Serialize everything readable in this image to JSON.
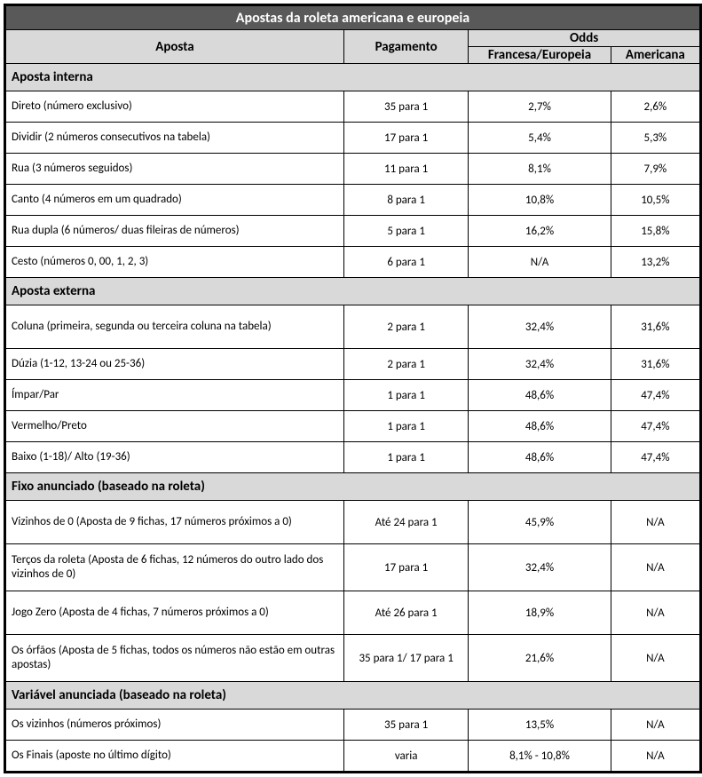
{
  "title": "Apostas da roleta americana e europeia",
  "headers": {
    "aposta": "Aposta",
    "pagamento": "Pagamento",
    "odds": "Odds",
    "europeu": "Francesa/Europeia",
    "americana": "Americana"
  },
  "sections": [
    {
      "name": "Aposta interna",
      "rows": [
        {
          "bet": "Direto (número exclusivo)",
          "pay": "35 para 1",
          "eu": "2,7%",
          "am": "2,6%"
        },
        {
          "bet": "Dividir (2 números consecutivos na tabela)",
          "pay": "17 para 1",
          "eu": "5,4%",
          "am": "5,3%"
        },
        {
          "bet": "Rua (3 números seguidos)",
          "pay": "11 para 1",
          "eu": "8,1%",
          "am": "7,9%"
        },
        {
          "bet": "Canto (4 números em um quadrado)",
          "pay": "8 para 1",
          "eu": "10,8%",
          "am": "10,5%"
        },
        {
          "bet": "Rua dupla (6 números/ duas fileiras de números)",
          "pay": "5 para 1",
          "eu": "16,2%",
          "am": "15,8%"
        },
        {
          "bet": "Cesto (números 0, 00, 1, 2, 3)",
          "pay": "6 para 1",
          "eu": "N/A",
          "am": "13,2%"
        }
      ]
    },
    {
      "name": "Aposta externa",
      "rows": [
        {
          "bet": "Coluna (primeira, segunda ou terceira coluna na tabela)",
          "pay": "2 para 1",
          "eu": "32,4%",
          "am": "31,6%",
          "tall": true
        },
        {
          "bet": "Dúzia (1-12, 13-24 ou 25-36)",
          "pay": "2 para 1",
          "eu": "32,4%",
          "am": "31,6%"
        },
        {
          "bet": "Ímpar/Par",
          "pay": "1 para 1",
          "eu": "48,6%",
          "am": "47,4%"
        },
        {
          "bet": "Vermelho/Preto",
          "pay": "1 para 1",
          "eu": "48,6%",
          "am": "47,4%"
        },
        {
          "bet": "Baixo (1-18)/ Alto (19-36)",
          "pay": "1 para 1",
          "eu": "48,6%",
          "am": "47,4%"
        }
      ]
    },
    {
      "name": "Fixo anunciado (baseado na roleta)",
      "rows": [
        {
          "bet": "Vizinhos de 0 (Aposta de 9 fichas, 17 números próximos a 0)",
          "pay": "Até 24 para 1",
          "eu": "45,9%",
          "am": "N/A",
          "tall": true
        },
        {
          "bet": "Terços da roleta (Aposta de 6 fichas, 12 números do outro lado dos vizinhos de 0)",
          "pay": "17 para 1",
          "eu": "32,4%",
          "am": "N/A",
          "xtall": true
        },
        {
          "bet": "Jogo Zero (Aposta de 4 fichas, 7 números próximos a 0)",
          "pay": "Até 26 para 1",
          "eu": "18,9%",
          "am": "N/A",
          "tall": true
        },
        {
          "bet": "Os órfãos (Aposta de 5 fichas, todos os números não estão em outras apostas)",
          "pay": "35 para 1/ 17 para 1",
          "eu": "21,6%",
          "am": "N/A",
          "xtall": true
        }
      ]
    },
    {
      "name": "Variável anunciada (baseado na roleta)",
      "rows": [
        {
          "bet": "Os vizinhos (números próximos)",
          "pay": "35 para 1",
          "eu": "13,5%",
          "am": "N/A"
        },
        {
          "bet": "Os Finais (aposte no último dígito)",
          "pay": "varia",
          "eu": "8,1% - 10,8%",
          "am": "N/A"
        }
      ]
    }
  ]
}
